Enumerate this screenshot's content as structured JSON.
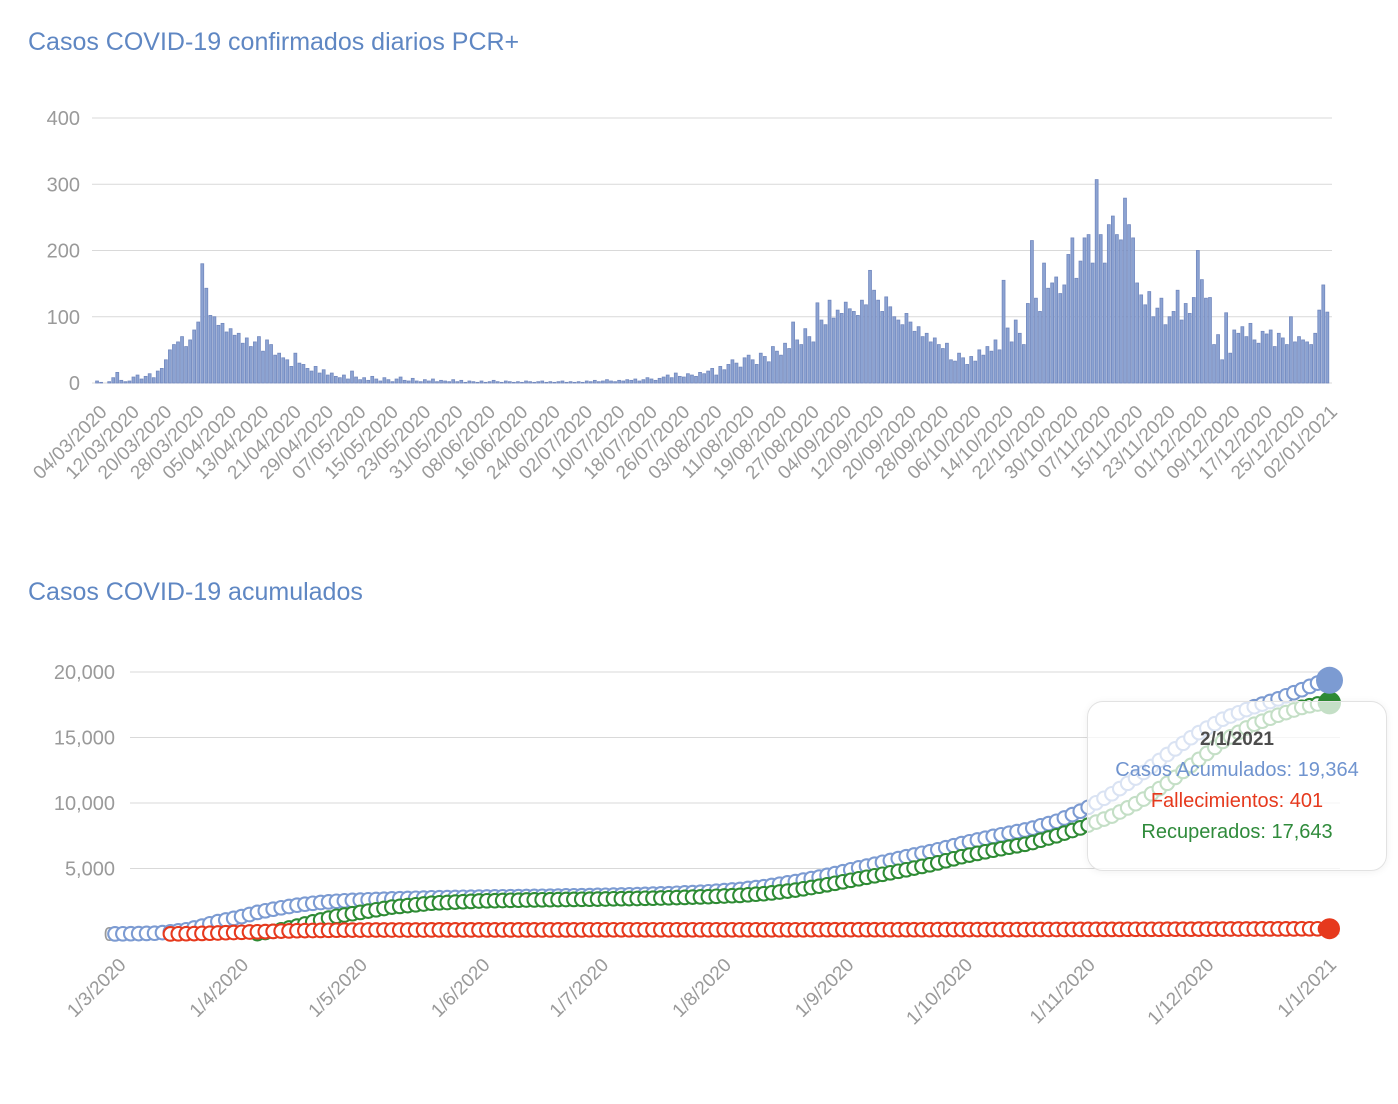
{
  "tooltip": {
    "date": "2/1/2021",
    "casos": "Casos Acumulados: 19,364",
    "fallecimientos": "Fallecimientos: 401",
    "recuperados": "Recuperados: 17,643"
  },
  "colors": {
    "title": "#5f87c3",
    "grid": "#d9d9d9",
    "tick_label": "#9a9a9a",
    "bar_fill": "#8CA3D2",
    "bar_border": "#7288BE",
    "casos": "#7c9bd2",
    "fallecimientos": "#e6391d",
    "recuperados": "#2e8b34"
  },
  "chart_data": [
    {
      "type": "bar",
      "title": "Casos COVID-19 confirmados diarios PCR+",
      "start_date": "04/03/2020",
      "end_date": "02/01/2021",
      "x_tick_every_days": 8,
      "x_tick_labels": [
        "04/03/2020",
        "12/03/2020",
        "20/03/2020",
        "28/03/2020",
        "05/04/2020",
        "13/04/2020",
        "21/04/2020",
        "29/04/2020",
        "07/05/2020",
        "15/05/2020",
        "23/05/2020",
        "31/05/2020",
        "08/06/2020",
        "16/06/2020",
        "24/06/2020",
        "02/07/2020",
        "10/07/2020",
        "18/07/2020",
        "26/07/2020",
        "03/08/2020",
        "11/08/2020",
        "19/08/2020",
        "27/08/2020",
        "04/09/2020",
        "12/09/2020",
        "20/09/2020",
        "28/09/2020",
        "06/10/2020",
        "14/10/2020",
        "22/10/2020",
        "30/10/2020",
        "07/11/2020",
        "15/11/2020",
        "23/11/2020",
        "01/12/2020",
        "09/12/2020",
        "17/12/2020",
        "25/12/2020",
        "02/01/2021"
      ],
      "ylim": [
        0,
        400
      ],
      "yticks": [
        0,
        100,
        200,
        300,
        400
      ],
      "grid": true,
      "values": [
        3,
        1,
        0,
        2,
        8,
        16,
        4,
        2,
        3,
        9,
        12,
        6,
        10,
        14,
        8,
        18,
        22,
        35,
        50,
        58,
        62,
        70,
        55,
        65,
        80,
        92,
        180,
        143,
        102,
        100,
        87,
        90,
        77,
        82,
        72,
        75,
        60,
        68,
        55,
        62,
        70,
        48,
        65,
        58,
        42,
        45,
        38,
        35,
        25,
        45,
        30,
        28,
        22,
        18,
        25,
        15,
        20,
        12,
        15,
        10,
        8,
        12,
        6,
        18,
        9,
        5,
        8,
        4,
        10,
        6,
        3,
        8,
        5,
        2,
        6,
        9,
        4,
        3,
        7,
        3,
        2,
        5,
        3,
        6,
        2,
        4,
        3,
        2,
        5,
        2,
        4,
        1,
        3,
        2,
        1,
        3,
        1,
        2,
        4,
        2,
        1,
        3,
        2,
        1,
        2,
        1,
        3,
        2,
        1,
        2,
        3,
        1,
        2,
        1,
        2,
        3,
        1,
        2,
        1,
        2,
        1,
        3,
        2,
        4,
        2,
        3,
        5,
        3,
        2,
        4,
        3,
        5,
        4,
        6,
        3,
        5,
        8,
        6,
        4,
        7,
        9,
        12,
        8,
        15,
        10,
        9,
        14,
        12,
        10,
        16,
        14,
        18,
        22,
        12,
        25,
        20,
        28,
        35,
        30,
        24,
        38,
        42,
        35,
        28,
        45,
        40,
        32,
        55,
        48,
        42,
        60,
        52,
        92,
        65,
        58,
        82,
        70,
        62,
        121,
        95,
        88,
        125,
        98,
        110,
        105,
        122,
        112,
        108,
        102,
        125,
        118,
        170,
        140,
        125,
        108,
        130,
        115,
        100,
        95,
        88,
        105,
        92,
        78,
        85,
        70,
        75,
        62,
        68,
        58,
        52,
        60,
        35,
        33,
        45,
        38,
        28,
        40,
        33,
        50,
        42,
        55,
        48,
        65,
        50,
        155,
        83,
        62,
        95,
        75,
        58,
        120,
        215,
        128,
        108,
        181,
        143,
        151,
        160,
        135,
        148,
        194,
        219,
        158,
        184,
        219,
        224,
        181,
        307,
        224,
        181,
        239,
        252,
        224,
        216,
        279,
        239,
        219,
        151,
        133,
        118,
        138,
        100,
        113,
        128,
        88,
        100,
        108,
        140,
        95,
        120,
        105,
        129,
        200,
        156,
        128,
        129,
        58,
        73,
        35,
        106,
        45,
        80,
        75,
        85,
        70,
        90,
        65,
        60,
        78,
        74,
        80,
        55,
        75,
        68,
        58,
        100,
        62,
        70,
        65,
        62,
        58,
        75,
        110,
        148,
        107
      ]
    },
    {
      "type": "scatter",
      "title": "Casos COVID-19 acumulados",
      "x_tick_labels": [
        "1/3/2020",
        "1/4/2020",
        "1/5/2020",
        "1/6/2020",
        "1/7/2020",
        "1/8/2020",
        "1/9/2020",
        "1/10/2020",
        "1/11/2020",
        "1/12/2020",
        "1/1/2021"
      ],
      "x_tick_day_offsets": [
        0,
        31,
        61,
        92,
        122,
        153,
        184,
        214,
        245,
        275,
        306
      ],
      "x_range_days": 307,
      "ylim": [
        0,
        20000
      ],
      "y_tick_labels": [
        "0",
        "5,000",
        "10,000",
        "15,000",
        "20,000"
      ],
      "yticks": [
        0,
        5000,
        10000,
        15000,
        20000
      ],
      "grid": true,
      "marker": "open-circle",
      "point_every_days": 2,
      "series": [
        {
          "name": "Casos Acumulados",
          "color": "#7c9bd2",
          "final_value": 19364,
          "anchors": [
            [
              0,
              10
            ],
            [
              6,
              30
            ],
            [
              10,
              60
            ],
            [
              14,
              160
            ],
            [
              18,
              320
            ],
            [
              22,
              600
            ],
            [
              26,
              950
            ],
            [
              31,
              1250
            ],
            [
              36,
              1650
            ],
            [
              41,
              1950
            ],
            [
              46,
              2200
            ],
            [
              51,
              2380
            ],
            [
              56,
              2500
            ],
            [
              61,
              2580
            ],
            [
              70,
              2680
            ],
            [
              80,
              2760
            ],
            [
              92,
              2820
            ],
            [
              105,
              2870
            ],
            [
              118,
              2920
            ],
            [
              130,
              2990
            ],
            [
              140,
              3080
            ],
            [
              150,
              3220
            ],
            [
              158,
              3400
            ],
            [
              165,
              3650
            ],
            [
              172,
              4000
            ],
            [
              179,
              4400
            ],
            [
              186,
              4900
            ],
            [
              193,
              5400
            ],
            [
              200,
              5900
            ],
            [
              207,
              6350
            ],
            [
              214,
              6900
            ],
            [
              222,
              7450
            ],
            [
              231,
              8000
            ],
            [
              238,
              8600
            ],
            [
              245,
              9500
            ],
            [
              252,
              10700
            ],
            [
              259,
              12100
            ],
            [
              266,
              13700
            ],
            [
              273,
              15200
            ],
            [
              280,
              16400
            ],
            [
              287,
              17250
            ],
            [
              294,
              17950
            ],
            [
              300,
              18650
            ],
            [
              304,
              19150
            ],
            [
              307,
              19364
            ]
          ]
        },
        {
          "name": "Recuperados",
          "color": "#2e8b34",
          "final_value": 17643,
          "anchors": [
            [
              36,
              30
            ],
            [
              41,
              250
            ],
            [
              46,
              600
            ],
            [
              51,
              1000
            ],
            [
              56,
              1350
            ],
            [
              61,
              1600
            ],
            [
              70,
              2050
            ],
            [
              80,
              2350
            ],
            [
              92,
              2520
            ],
            [
              105,
              2600
            ],
            [
              118,
              2650
            ],
            [
              130,
              2700
            ],
            [
              140,
              2760
            ],
            [
              150,
              2850
            ],
            [
              158,
              2950
            ],
            [
              165,
              3100
            ],
            [
              172,
              3350
            ],
            [
              179,
              3700
            ],
            [
              186,
              4100
            ],
            [
              193,
              4500
            ],
            [
              200,
              4900
            ],
            [
              207,
              5350
            ],
            [
              214,
              5900
            ],
            [
              222,
              6400
            ],
            [
              231,
              6900
            ],
            [
              238,
              7500
            ],
            [
              245,
              8200
            ],
            [
              252,
              9000
            ],
            [
              259,
              10100
            ],
            [
              266,
              11500
            ],
            [
              273,
              13100
            ],
            [
              280,
              14700
            ],
            [
              287,
              15900
            ],
            [
              294,
              16700
            ],
            [
              300,
              17300
            ],
            [
              304,
              17560
            ],
            [
              307,
              17643
            ]
          ]
        },
        {
          "name": "Fallecimientos",
          "color": "#e6391d",
          "final_value": 401,
          "anchors": [
            [
              14,
              5
            ],
            [
              18,
              20
            ],
            [
              22,
              45
            ],
            [
              26,
              80
            ],
            [
              31,
              120
            ],
            [
              36,
              170
            ],
            [
              41,
              210
            ],
            [
              46,
              250
            ],
            [
              51,
              275
            ],
            [
              56,
              290
            ],
            [
              61,
              300
            ],
            [
              80,
              310
            ],
            [
              105,
              315
            ],
            [
              130,
              318
            ],
            [
              150,
              320
            ],
            [
              172,
              324
            ],
            [
              193,
              328
            ],
            [
              214,
              334
            ],
            [
              231,
              340
            ],
            [
              245,
              348
            ],
            [
              259,
              358
            ],
            [
              273,
              370
            ],
            [
              287,
              383
            ],
            [
              300,
              394
            ],
            [
              307,
              401
            ]
          ]
        }
      ]
    }
  ]
}
